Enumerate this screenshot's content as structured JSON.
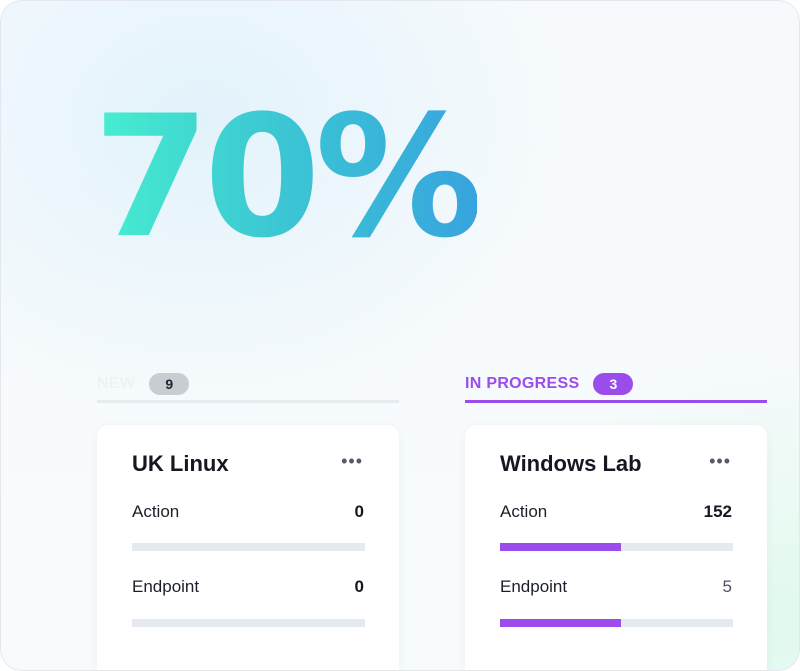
{
  "hero": {
    "percent": "70%",
    "subtitle": "",
    "gradient": [
      "#47efcf",
      "#3cc9d3",
      "#37a4de"
    ]
  },
  "columns": [
    {
      "label": "NEW",
      "count": "9",
      "card": {
        "title": "UK Linux",
        "more_icon": "more-horizontal-icon",
        "rows": [
          {
            "label": "Action",
            "value": "0",
            "progress": 0
          },
          {
            "label": "Endpoint",
            "value": "0",
            "progress": 0
          }
        ]
      }
    },
    {
      "label": "IN PROGRESS",
      "count": "3",
      "accent": "#9a4dea",
      "card": {
        "title": "Windows Lab",
        "more_icon": "more-horizontal-icon",
        "rows": [
          {
            "label": "Action",
            "value": "152",
            "progress": 0.52
          },
          {
            "label": "Endpoint",
            "value": "5",
            "progress": 0.52
          }
        ]
      }
    }
  ]
}
